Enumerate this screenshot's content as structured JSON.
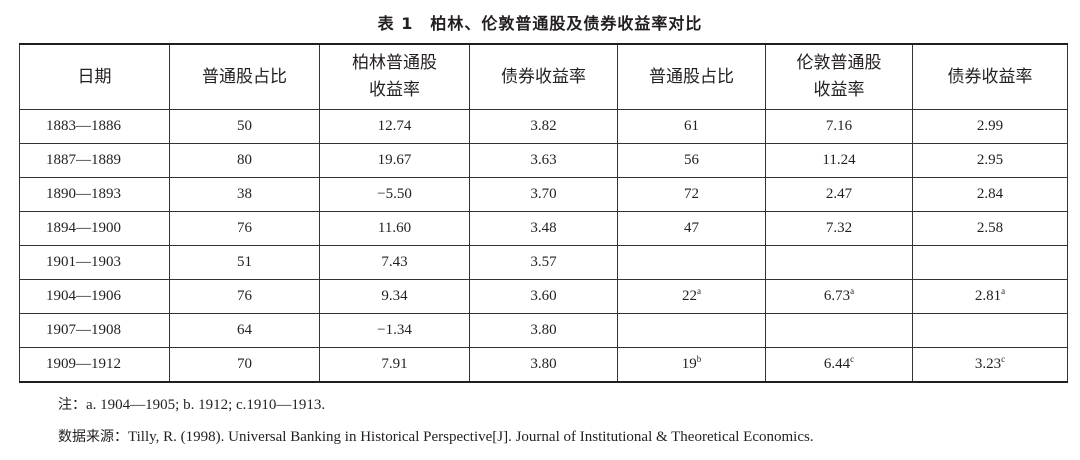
{
  "title": "表 1　柏林、伦敦普通股及债券收益率对比",
  "headers": [
    [
      "日期"
    ],
    [
      "普通股占比"
    ],
    [
      "柏林普通股",
      "收益率"
    ],
    [
      "债券收益率"
    ],
    [
      "普通股占比"
    ],
    [
      "伦敦普通股",
      "收益率"
    ],
    [
      "债券收益率"
    ]
  ],
  "rows": [
    [
      {
        "v": "1883—1886"
      },
      {
        "v": "50"
      },
      {
        "v": "12.74"
      },
      {
        "v": "3.82"
      },
      {
        "v": "61"
      },
      {
        "v": "7.16"
      },
      {
        "v": "2.99"
      }
    ],
    [
      {
        "v": "1887—1889"
      },
      {
        "v": "80"
      },
      {
        "v": "19.67"
      },
      {
        "v": "3.63"
      },
      {
        "v": "56"
      },
      {
        "v": "11.24"
      },
      {
        "v": "2.95"
      }
    ],
    [
      {
        "v": "1890—1893"
      },
      {
        "v": "38"
      },
      {
        "v": "−5.50"
      },
      {
        "v": "3.70"
      },
      {
        "v": "72"
      },
      {
        "v": "2.47"
      },
      {
        "v": "2.84"
      }
    ],
    [
      {
        "v": "1894—1900"
      },
      {
        "v": "76"
      },
      {
        "v": "11.60"
      },
      {
        "v": "3.48"
      },
      {
        "v": "47"
      },
      {
        "v": "7.32"
      },
      {
        "v": "2.58"
      }
    ],
    [
      {
        "v": "1901—1903"
      },
      {
        "v": "51"
      },
      {
        "v": "7.43"
      },
      {
        "v": "3.57"
      },
      {
        "v": ""
      },
      {
        "v": ""
      },
      {
        "v": ""
      }
    ],
    [
      {
        "v": "1904—1906"
      },
      {
        "v": "76"
      },
      {
        "v": "9.34"
      },
      {
        "v": "3.60"
      },
      {
        "v": "22",
        "sup": "a"
      },
      {
        "v": "6.73",
        "sup": "a"
      },
      {
        "v": "2.81",
        "sup": "a"
      }
    ],
    [
      {
        "v": "1907—1908"
      },
      {
        "v": "64"
      },
      {
        "v": "−1.34"
      },
      {
        "v": "3.80"
      },
      {
        "v": ""
      },
      {
        "v": ""
      },
      {
        "v": ""
      }
    ],
    [
      {
        "v": "1909—1912"
      },
      {
        "v": "70"
      },
      {
        "v": "7.91"
      },
      {
        "v": "3.80"
      },
      {
        "v": "19",
        "sup": "b"
      },
      {
        "v": "6.44",
        "sup": "c"
      },
      {
        "v": "3.23",
        "sup": "c"
      }
    ]
  ],
  "note": {
    "label": "注：",
    "text": "a. 1904—1905; b. 1912; c.1910—1913."
  },
  "source": {
    "label": "数据来源：",
    "text": "Tilly, R. (1998). Universal Banking in Historical Perspective[J]. Journal of Institutional & Theoretical Economics."
  }
}
